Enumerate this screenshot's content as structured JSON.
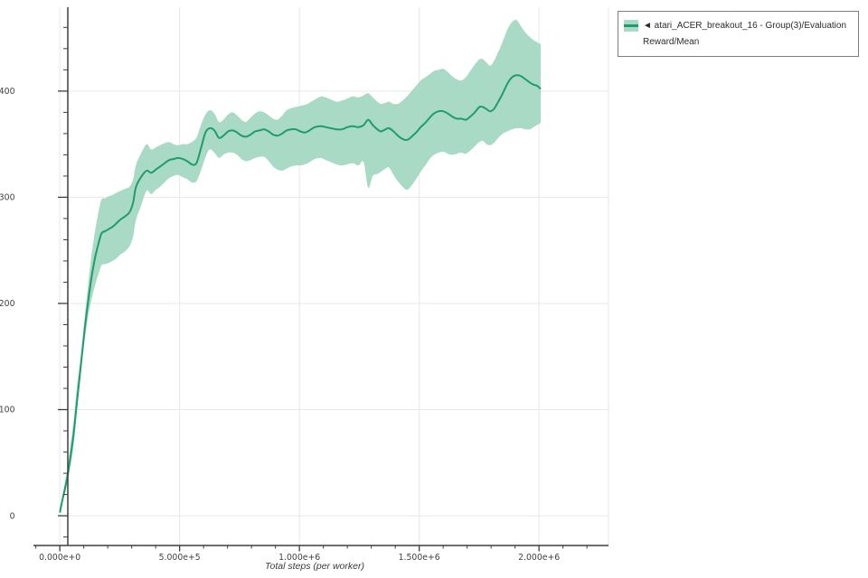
{
  "colors": {
    "line": "#1f9c6d",
    "band": "#a9dac6",
    "grid": "#e7e7e7",
    "spine": "#3e3e3e",
    "tick_label": "#3f3f3f",
    "axis_title": "#3a3a3a",
    "legend_border": "#7d7d7d",
    "legend_text": "#2b2b2b"
  },
  "chart_data": {
    "type": "line",
    "title": "",
    "xlabel": "Total steps (per worker)",
    "ylabel": "",
    "grid": "major",
    "legend": {
      "position": "outside-top-right",
      "entries": [
        {
          "label": "◄ atari_ACER_breakout_16 - Group(3)/Evaluation Reward/Mean",
          "line_color": "#1f9c6d",
          "band_color": "#a9dac6"
        }
      ]
    },
    "x_range": [
      -110000,
      2290000
    ],
    "y_range": [
      -28,
      479
    ],
    "x_minor_step": 100000,
    "y_minor_step": 20,
    "x_ticks": [
      {
        "value": 0,
        "label": "0.000e+0"
      },
      {
        "value": 500000,
        "label": "5.000e+5"
      },
      {
        "value": 1000000,
        "label": "1.000e+6"
      },
      {
        "value": 1500000,
        "label": "1.500e+6"
      },
      {
        "value": 2000000,
        "label": "2.000e+6"
      }
    ],
    "y_ticks": [
      {
        "value": 0,
        "label": "0"
      },
      {
        "value": 100,
        "label": "100"
      },
      {
        "value": 200,
        "label": "200"
      },
      {
        "value": 300,
        "label": "300"
      },
      {
        "value": 400,
        "label": "400"
      }
    ],
    "series": [
      {
        "name": "atari_ACER_breakout_16 - Group(3)/Evaluation Reward/Mean",
        "steps": [
          0,
          10000,
          20000,
          30000,
          42000,
          57000,
          72000,
          87000,
          102000,
          117000,
          132000,
          147000,
          162000,
          174000,
          189000,
          204000,
          219000,
          234000,
          253000,
          272000,
          291000,
          306000,
          317000,
          336000,
          362000,
          381000,
          400000,
          419000,
          437000,
          456000,
          475000,
          494000,
          513000,
          532000,
          551000,
          570000,
          589000,
          608000,
          626000,
          645000,
          664000,
          683000,
          702000,
          721000,
          740000,
          758000,
          777000,
          796000,
          815000,
          834000,
          853000,
          872000,
          890000,
          909000,
          928000,
          947000,
          966000,
          985000,
          1004000,
          1023000,
          1042000,
          1064000,
          1090000,
          1110000,
          1132000,
          1155000,
          1178000,
          1200000,
          1223000,
          1246000,
          1268000,
          1287000,
          1306000,
          1325000,
          1340000,
          1359000,
          1374000,
          1393000,
          1411000,
          1430000,
          1449000,
          1468000,
          1487000,
          1506000,
          1525000,
          1544000,
          1562000,
          1581000,
          1600000,
          1619000,
          1638000,
          1657000,
          1676000,
          1694000,
          1713000,
          1732000,
          1751000,
          1766000,
          1781000,
          1796000,
          1811000,
          1830000,
          1849000,
          1868000,
          1887000,
          1906000,
          1925000,
          1944000,
          1962000,
          1977000,
          1992000,
          2007000
        ],
        "mean": [
          3,
          14,
          24,
          35,
          52,
          76,
          108,
          140,
          172,
          200,
          224,
          243,
          257,
          266,
          268,
          270,
          272,
          275,
          279,
          282,
          286,
          295,
          309,
          318,
          325,
          323,
          326,
          329,
          332,
          335,
          336,
          337,
          336,
          334,
          331,
          332,
          346,
          361,
          365,
          363,
          356,
          358,
          362,
          363,
          361,
          358,
          357,
          359,
          362,
          363,
          364,
          362,
          359,
          358,
          360,
          363,
          364,
          364,
          362,
          361,
          363,
          366,
          367,
          366,
          365,
          364,
          364,
          366,
          367,
          366,
          368,
          373,
          368,
          364,
          362,
          364,
          365,
          362,
          358,
          355,
          354,
          357,
          361,
          366,
          370,
          375,
          379,
          381,
          381,
          379,
          376,
          374,
          374,
          373,
          376,
          380,
          385,
          385,
          383,
          381,
          383,
          390,
          398,
          407,
          413,
          415,
          414,
          411,
          408,
          406,
          405,
          402
        ],
        "lower": [
          2,
          11,
          20,
          29,
          44,
          65,
          101,
          132,
          162,
          186,
          203,
          217,
          228,
          236,
          237,
          238,
          240,
          242,
          246,
          249,
          254,
          263,
          278,
          290,
          306,
          303,
          307,
          310,
          314,
          318,
          320,
          321,
          319,
          317,
          314,
          315,
          325,
          338,
          345,
          342,
          337,
          340,
          342,
          342,
          340,
          336,
          334,
          335,
          337,
          338,
          338,
          334,
          329,
          326,
          325,
          327,
          329,
          330,
          330,
          331,
          333,
          336,
          337,
          335,
          333,
          331,
          330,
          331,
          332,
          330,
          333,
          309,
          320,
          322,
          324,
          327,
          328,
          321,
          315,
          310,
          307,
          311,
          317,
          324,
          330,
          336,
          340,
          342,
          343,
          341,
          340,
          341,
          342,
          341,
          344,
          348,
          352,
          353,
          350,
          349,
          351,
          356,
          360,
          362,
          364,
          365,
          365,
          364,
          364,
          366,
          368,
          370
        ],
        "upper": [
          5,
          18,
          30,
          42,
          62,
          89,
          123,
          149,
          183,
          215,
          245,
          268,
          287,
          298,
          299,
          301,
          302,
          304,
          306,
          308,
          310,
          317,
          330,
          340,
          350,
          345,
          347,
          349,
          351,
          352,
          350,
          349,
          350,
          350,
          352,
          356,
          368,
          378,
          382,
          379,
          371,
          373,
          378,
          380,
          377,
          373,
          371,
          375,
          379,
          381,
          380,
          377,
          374,
          373,
          377,
          382,
          384,
          385,
          386,
          387,
          389,
          392,
          395,
          394,
          392,
          390,
          391,
          393,
          395,
          394,
          396,
          398,
          394,
          390,
          388,
          389,
          390,
          388,
          388,
          391,
          395,
          400,
          405,
          410,
          413,
          416,
          419,
          420,
          421,
          418,
          414,
          411,
          410,
          413,
          419,
          425,
          430,
          430,
          427,
          424,
          428,
          437,
          447,
          458,
          465,
          467,
          461,
          455,
          451,
          448,
          446,
          444
        ]
      }
    ]
  }
}
